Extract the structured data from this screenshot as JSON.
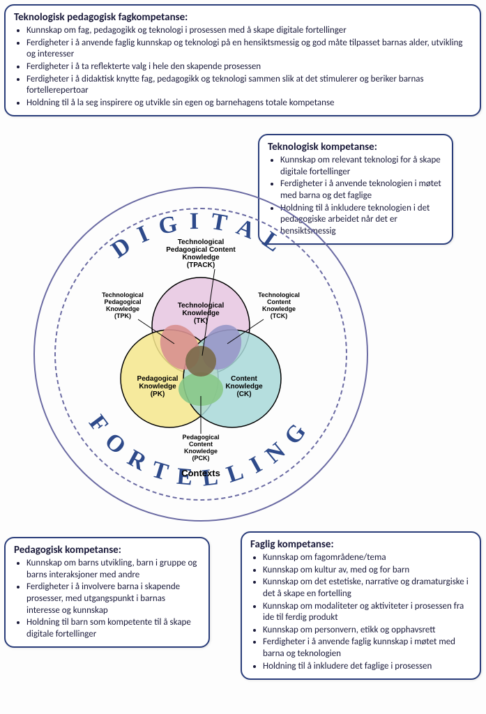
{
  "boxes": {
    "tpf": {
      "title": "Teknologisk pedagogisk fagkompetanse:",
      "items": [
        "Kunnskap om fag, pedagogikk og teknologi i prosessen med å skape digitale fortellinger",
        "Ferdigheter i å anvende faglig kunnskap og teknologi på en hensiktsmessig og god måte tilpasset barnas alder, utvikling og interesser",
        "Ferdigheter i å ta reflekterte valg i hele den skapende prosessen",
        "Ferdigheter i å didaktisk knytte fag, pedagogikk og teknologi sammen slik at det stimulerer og beriker barnas fortellerepertoar",
        "Holdning til å la seg inspirere og utvikle sin egen og barnehagens totale kompetanse"
      ]
    },
    "tk": {
      "title": "Teknologisk kompetanse:",
      "items": [
        "Kunnskap om relevant teknologi for å skape digitale fortellinger",
        "Ferdigheter i å anvende teknologien i møtet med barna og det faglige",
        "Holdning til å inkludere teknologien i det pedagogiske arbeidet når det er hensiktsmessig"
      ]
    },
    "pk": {
      "title": "Pedagogisk kompetanse:",
      "items": [
        "Kunnskap om barns utvikling, barn i gruppe og barns interaksjoner med andre",
        "Ferdigheter i å involvere barna i skapende prosesser, med utgangspunkt i barnas interesse og kunnskap",
        "Holdning til barn som kompetente til å skape digitale fortellinger"
      ]
    },
    "fk": {
      "title": "Faglig kompetanse:",
      "items": [
        "Kunnskap om fagområdene/tema",
        "Kunnskap om kultur av, med og for barn",
        "Kunnskap om det estetiske, narrative og dramaturgiske i det å skape en fortelling",
        "Kunnskap om modaliteter og aktiviteter i prosessen fra ide til ferdig produkt",
        "Kunnskap om personvern, etikk og opphavsrett",
        "Ferdigheter i å anvende faglig kunnskap i møtet med barna og teknologien",
        "Holdning til å inkludere det faglige i prosessen"
      ]
    }
  },
  "ring_text_top": "DIGITAL",
  "ring_text_bottom": "FORTELLING",
  "venn": {
    "center_title_l1": "Technological",
    "center_title_l2": "Pedagogical Content",
    "center_title_l3": "Knowledge",
    "center_title_l4": "(TPACK)",
    "tk_l1": "Technological",
    "tk_l2": "Knowledge",
    "tk_l3": "(TK)",
    "pk_l1": "Pedagogical",
    "pk_l2": "Knowledge",
    "pk_l3": "(PK)",
    "ck_l1": "Content",
    "ck_l2": "Knowledge",
    "ck_l3": "(CK)",
    "tpk_l1": "Technological",
    "tpk_l2": "Pedagogical",
    "tpk_l3": "Knowledge",
    "tpk_l4": "(TPK)",
    "tck_l1": "Technological",
    "tck_l2": "Content",
    "tck_l3": "Knowledge",
    "tck_l4": "(TCK)",
    "pck_l1": "Pedagogical",
    "pck_l2": "Content",
    "pck_l3": "Knowledge",
    "pck_l4": "(PCK)",
    "contexts": "Contexts",
    "colors": {
      "tk": "#e6c5e0",
      "pk": "#f5e68c",
      "ck": "#a8d8d8",
      "tpk": "#d89090",
      "tck": "#9898c8",
      "pck": "#88c888",
      "center": "#7a6a4a",
      "stroke": "#000"
    }
  }
}
